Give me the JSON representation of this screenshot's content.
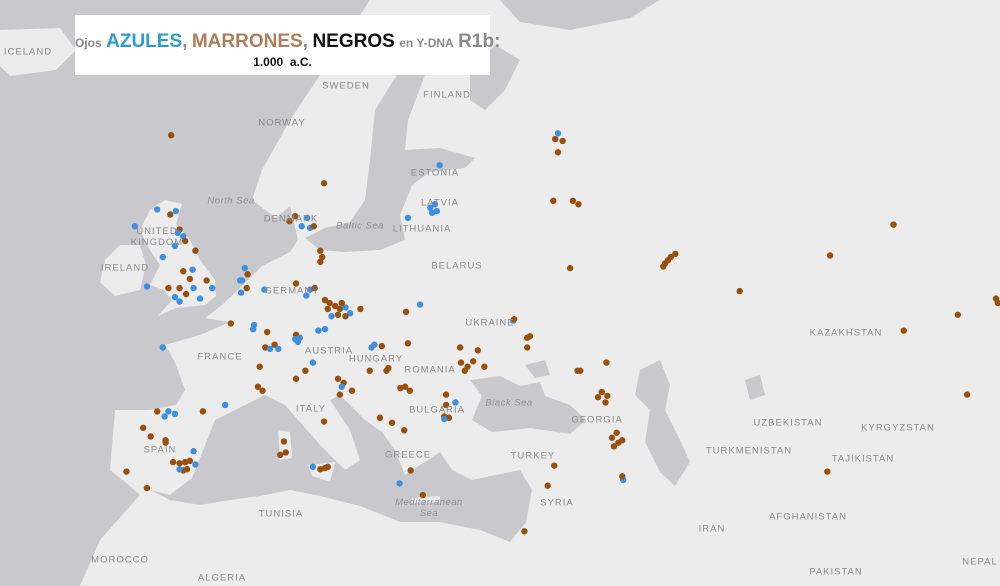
{
  "title": {
    "prefix": "Ojos",
    "blue_word": "AZULES",
    "sep1": ",",
    "brown_word": "MARRONES",
    "sep2": ",",
    "black_word": "NEGROS",
    "mid": "en Y-DNA",
    "haplogroup": "R1b",
    "colon": ":",
    "date": "1.000  a.C."
  },
  "colors": {
    "blue": "#3d8fe0",
    "brown": "#9a4f0c",
    "black": "#111111",
    "water": "#c9c9cd",
    "land": "#ececec"
  },
  "labels": {
    "iceland": "ICELAND",
    "sweden": "SWEDEN",
    "finland": "FINLAND",
    "norway": "NORWAY",
    "north_sea": "North Sea",
    "estonia": "ESTONIA",
    "denmark": "DENMARK",
    "baltic_sea": "Baltic Sea",
    "latvia": "LATVIA",
    "uk": "UNITED KINGDOM",
    "lithuania": "LITHUANIA",
    "ireland": "IRELAND",
    "belarus": "BELARUS",
    "germany": "GERMANY",
    "ukraine": "UKRAINE",
    "kazakhstan": "KAZAKHSTAN",
    "france": "FRANCE",
    "austria": "AUSTRIA",
    "hungary": "HUNGARY",
    "romania": "ROMANIA",
    "black_sea": "Black Sea",
    "bulgaria": "BULGARIA",
    "italy": "ITALY",
    "georgia": "GEORGIA",
    "uzbekistan": "UZBEKISTAN",
    "kyrgyzstan": "KYRGYZSTAN",
    "spain": "SPAIN",
    "turkmenistan": "TURKMENISTAN",
    "greece": "GREECE",
    "turkey": "TURKEY",
    "tajikistan": "TAJIKISTAN",
    "syria": "SYRIA",
    "tunisia": "TUNISIA",
    "mediterranean": "Mediterranean Sea",
    "iran": "IRAN",
    "afghanistan": "AFGHANISTAN",
    "morocco": "MOROCCO",
    "algeria": "ALGERIA",
    "pakistan": "PAKISTAN",
    "nepal": "NEPAL"
  },
  "samples": [
    {
      "lon": -2.8,
      "lat": 61.0,
      "eye": "brown"
    },
    {
      "lon": -4.3,
      "lat": 56.9,
      "eye": "blue"
    },
    {
      "lon": -2.3,
      "lat": 56.8,
      "eye": "blue"
    },
    {
      "lon": -2.9,
      "lat": 56.6,
      "eye": "brown"
    },
    {
      "lon": -6.7,
      "lat": 55.9,
      "eye": "blue"
    },
    {
      "lon": -1.9,
      "lat": 55.7,
      "eye": "brown"
    },
    {
      "lon": -2.1,
      "lat": 55.5,
      "eye": "blue"
    },
    {
      "lon": -1.5,
      "lat": 55.3,
      "eye": "blue"
    },
    {
      "lon": -2.4,
      "lat": 54.7,
      "eye": "blue"
    },
    {
      "lon": -1.3,
      "lat": 55.0,
      "eye": "brown"
    },
    {
      "lon": -0.2,
      "lat": 54.4,
      "eye": "brown"
    },
    {
      "lon": -3.7,
      "lat": 54.0,
      "eye": "blue"
    },
    {
      "lon": -1.5,
      "lat": 53.1,
      "eye": "brown"
    },
    {
      "lon": -0.5,
      "lat": 53.2,
      "eye": "blue"
    },
    {
      "lon": -0.8,
      "lat": 52.6,
      "eye": "brown"
    },
    {
      "lon": -1.9,
      "lat": 52.0,
      "eye": "brown"
    },
    {
      "lon": -1.2,
      "lat": 51.6,
      "eye": "brown"
    },
    {
      "lon": -0.4,
      "lat": 52.0,
      "eye": "blue"
    },
    {
      "lon": 0.3,
      "lat": 51.3,
      "eye": "blue"
    },
    {
      "lon": 1.6,
      "lat": 52.0,
      "eye": "blue"
    },
    {
      "lon": -3.1,
      "lat": 52.0,
      "eye": "brown"
    },
    {
      "lon": -1.9,
      "lat": 51.1,
      "eye": "blue"
    },
    {
      "lon": -2.4,
      "lat": 51.4,
      "eye": "blue"
    },
    {
      "lon": 1.0,
      "lat": 52.5,
      "eye": "brown"
    },
    {
      "lon": -5.4,
      "lat": 52.1,
      "eye": "blue"
    },
    {
      "lon": 5.1,
      "lat": 53.3,
      "eye": "blue"
    },
    {
      "lon": 5.4,
      "lat": 52.9,
      "eye": "brown"
    },
    {
      "lon": 4.8,
      "lat": 52.5,
      "eye": "blue"
    },
    {
      "lon": 5.3,
      "lat": 52.0,
      "eye": "brown"
    },
    {
      "lon": 4.7,
      "lat": 51.7,
      "eye": "blue"
    },
    {
      "lon": 4.6,
      "lat": 52.5,
      "eye": "blue"
    },
    {
      "lon": 7.2,
      "lat": 51.9,
      "eye": "blue"
    },
    {
      "lon": 10.6,
      "lat": 52.3,
      "eye": "brown"
    },
    {
      "lon": 12.1,
      "lat": 51.9,
      "eye": "blue"
    },
    {
      "lon": 11.7,
      "lat": 51.5,
      "eye": "blue"
    },
    {
      "lon": 12.6,
      "lat": 52.0,
      "eye": "brown"
    },
    {
      "lon": 10.5,
      "lat": 56.5,
      "eye": "brown"
    },
    {
      "lon": 9.9,
      "lat": 56.2,
      "eye": "brown"
    },
    {
      "lon": 11.8,
      "lat": 56.4,
      "eye": "blue"
    },
    {
      "lon": 11.2,
      "lat": 55.9,
      "eye": "blue"
    },
    {
      "lon": 12.1,
      "lat": 55.8,
      "eye": "blue"
    },
    {
      "lon": 12.5,
      "lat": 55.9,
      "eye": "brown"
    },
    {
      "lon": 13.2,
      "lat": 54.4,
      "eye": "brown"
    },
    {
      "lon": 13.4,
      "lat": 54.0,
      "eye": "brown"
    },
    {
      "lon": 13.2,
      "lat": 53.7,
      "eye": "brown"
    },
    {
      "lon": 13.6,
      "lat": 58.4,
      "eye": "brown"
    },
    {
      "lon": 13.7,
      "lat": 51.2,
      "eye": "brown"
    },
    {
      "lon": 14.2,
      "lat": 51.0,
      "eye": "brown"
    },
    {
      "lon": 14.8,
      "lat": 50.8,
      "eye": "brown"
    },
    {
      "lon": 15.3,
      "lat": 50.6,
      "eye": "brown"
    },
    {
      "lon": 15.9,
      "lat": 50.7,
      "eye": "blue"
    },
    {
      "lon": 16.4,
      "lat": 50.3,
      "eye": "blue"
    },
    {
      "lon": 14.4,
      "lat": 50.1,
      "eye": "blue"
    },
    {
      "lon": 15.1,
      "lat": 50.2,
      "eye": "brown"
    },
    {
      "lon": 14.0,
      "lat": 50.6,
      "eye": "brown"
    },
    {
      "lon": 15.9,
      "lat": 50.1,
      "eye": "brown"
    },
    {
      "lon": 17.5,
      "lat": 50.6,
      "eye": "brown"
    },
    {
      "lon": 15.5,
      "lat": 51.0,
      "eye": "brown"
    },
    {
      "lon": 22.4,
      "lat": 50.4,
      "eye": "brown"
    },
    {
      "lon": 23.9,
      "lat": 50.9,
      "eye": "blue"
    },
    {
      "lon": 3.6,
      "lat": 49.6,
      "eye": "brown"
    },
    {
      "lon": 6.1,
      "lat": 49.5,
      "eye": "blue"
    },
    {
      "lon": 6.0,
      "lat": 49.2,
      "eye": "blue"
    },
    {
      "lon": 7.5,
      "lat": 49.0,
      "eye": "brown"
    },
    {
      "lon": 7.3,
      "lat": 47.9,
      "eye": "brown"
    },
    {
      "lon": 8.3,
      "lat": 48.1,
      "eye": "brown"
    },
    {
      "lon": 8.7,
      "lat": 47.8,
      "eye": "blue"
    },
    {
      "lon": 7.8,
      "lat": 47.8,
      "eye": "blue"
    },
    {
      "lon": 10.6,
      "lat": 48.8,
      "eye": "brown"
    },
    {
      "lon": 10.8,
      "lat": 48.3,
      "eye": "blue"
    },
    {
      "lon": 11.0,
      "lat": 48.6,
      "eye": "blue"
    },
    {
      "lon": 10.5,
      "lat": 48.5,
      "eye": "blue"
    },
    {
      "lon": 13.0,
      "lat": 49.1,
      "eye": "blue"
    },
    {
      "lon": 13.7,
      "lat": 49.2,
      "eye": "blue"
    },
    {
      "lon": -3.7,
      "lat": 47.9,
      "eye": "blue"
    },
    {
      "lon": 6.7,
      "lat": 46.5,
      "eye": "brown"
    },
    {
      "lon": 6.5,
      "lat": 45.0,
      "eye": "brown"
    },
    {
      "lon": 7.0,
      "lat": 44.7,
      "eye": "brown"
    },
    {
      "lon": 3.0,
      "lat": 43.6,
      "eye": "blue"
    },
    {
      "lon": 10.6,
      "lat": 45.6,
      "eye": "brown"
    },
    {
      "lon": 12.4,
      "lat": 46.8,
      "eye": "blue"
    },
    {
      "lon": 11.6,
      "lat": 46.2,
      "eye": "brown"
    },
    {
      "lon": 18.7,
      "lat": 47.9,
      "eye": "blue"
    },
    {
      "lon": 19.0,
      "lat": 48.1,
      "eye": "blue"
    },
    {
      "lon": 19.8,
      "lat": 48.0,
      "eye": "brown"
    },
    {
      "lon": 22.6,
      "lat": 48.2,
      "eye": "brown"
    },
    {
      "lon": 18.5,
      "lat": 46.2,
      "eye": "brown"
    },
    {
      "lon": 20.3,
      "lat": 46.2,
      "eye": "brown"
    },
    {
      "lon": 20.5,
      "lat": 46.4,
      "eye": "brown"
    },
    {
      "lon": 15.1,
      "lat": 45.6,
      "eye": "brown"
    },
    {
      "lon": 15.7,
      "lat": 45.3,
      "eye": "brown"
    },
    {
      "lon": 15.5,
      "lat": 45.0,
      "eye": "blue"
    },
    {
      "lon": 16.6,
      "lat": 44.7,
      "eye": "brown"
    },
    {
      "lon": 15.3,
      "lat": 44.4,
      "eye": "brown"
    },
    {
      "lon": 22.3,
      "lat": 45.0,
      "eye": "brown"
    },
    {
      "lon": 22.8,
      "lat": 44.7,
      "eye": "brown"
    },
    {
      "lon": 21.8,
      "lat": 44.9,
      "eye": "brown"
    },
    {
      "lon": 26.7,
      "lat": 44.4,
      "eye": "brown"
    },
    {
      "lon": 27.7,
      "lat": 43.8,
      "eye": "blue"
    },
    {
      "lon": 26.7,
      "lat": 43.6,
      "eye": "brown"
    },
    {
      "lon": 26.5,
      "lat": 42.7,
      "eye": "brown"
    },
    {
      "lon": 27.0,
      "lat": 42.6,
      "eye": "brown"
    },
    {
      "lon": 26.5,
      "lat": 42.5,
      "eye": "blue"
    },
    {
      "lon": 19.6,
      "lat": 42.6,
      "eye": "brown"
    },
    {
      "lon": 20.9,
      "lat": 42.2,
      "eye": "brown"
    },
    {
      "lon": 22.2,
      "lat": 41.6,
      "eye": "brown"
    },
    {
      "lon": 22.9,
      "lat": 38.3,
      "eye": "brown"
    },
    {
      "lon": 21.7,
      "lat": 37.2,
      "eye": "blue"
    },
    {
      "lon": 24.2,
      "lat": 36.2,
      "eye": "brown"
    },
    {
      "lon": 28.7,
      "lat": 46.2,
      "eye": "brown"
    },
    {
      "lon": 29.0,
      "lat": 46.5,
      "eye": "brown"
    },
    {
      "lon": 28.3,
      "lat": 46.8,
      "eye": "brown"
    },
    {
      "lon": 28.2,
      "lat": 47.9,
      "eye": "brown"
    },
    {
      "lon": 13.6,
      "lat": 42.3,
      "eye": "brown"
    },
    {
      "lon": 9.3,
      "lat": 40.7,
      "eye": "brown"
    },
    {
      "lon": 9.5,
      "lat": 39.8,
      "eye": "brown"
    },
    {
      "lon": 8.9,
      "lat": 39.6,
      "eye": "brown"
    },
    {
      "lon": 12.4,
      "lat": 38.6,
      "eye": "blue"
    },
    {
      "lon": 13.7,
      "lat": 38.5,
      "eye": "brown"
    },
    {
      "lon": 14.0,
      "lat": 38.6,
      "eye": "brown"
    },
    {
      "lon": 13.2,
      "lat": 38.4,
      "eye": "brown"
    },
    {
      "lon": -4.3,
      "lat": 43.1,
      "eye": "brown"
    },
    {
      "lon": -3.1,
      "lat": 43.1,
      "eye": "blue"
    },
    {
      "lon": -2.4,
      "lat": 42.9,
      "eye": "blue"
    },
    {
      "lon": -3.5,
      "lat": 42.7,
      "eye": "blue"
    },
    {
      "lon": 0.6,
      "lat": 43.1,
      "eye": "brown"
    },
    {
      "lon": -5.8,
      "lat": 41.8,
      "eye": "brown"
    },
    {
      "lon": -5.0,
      "lat": 41.1,
      "eye": "brown"
    },
    {
      "lon": -3.4,
      "lat": 40.8,
      "eye": "brown"
    },
    {
      "lon": -3.4,
      "lat": 40.6,
      "eye": "brown"
    },
    {
      "lon": -0.4,
      "lat": 39.9,
      "eye": "blue"
    },
    {
      "lon": -0.2,
      "lat": 38.8,
      "eye": "blue"
    },
    {
      "lon": -1.9,
      "lat": 38.9,
      "eye": "brown"
    },
    {
      "lon": -1.3,
      "lat": 39.0,
      "eye": "brown"
    },
    {
      "lon": -1.1,
      "lat": 38.4,
      "eye": "brown"
    },
    {
      "lon": -0.8,
      "lat": 39.1,
      "eye": "brown"
    },
    {
      "lon": -1.5,
      "lat": 38.3,
      "eye": "brown"
    },
    {
      "lon": -2.6,
      "lat": 39.0,
      "eye": "brown"
    },
    {
      "lon": -1.9,
      "lat": 38.4,
      "eye": "blue"
    },
    {
      "lon": -7.6,
      "lat": 38.2,
      "eye": "brown"
    },
    {
      "lon": -5.4,
      "lat": 36.8,
      "eye": "brown"
    },
    {
      "lon": 26.0,
      "lat": 59.4,
      "eye": "blue"
    },
    {
      "lon": 25.0,
      "lat": 57.0,
      "eye": "blue"
    },
    {
      "lon": 25.5,
      "lat": 57.2,
      "eye": "blue"
    },
    {
      "lon": 25.2,
      "lat": 56.7,
      "eye": "blue"
    },
    {
      "lon": 25.7,
      "lat": 56.8,
      "eye": "blue"
    },
    {
      "lon": 22.6,
      "lat": 56.4,
      "eye": "blue"
    },
    {
      "lon": 38.7,
      "lat": 61.1,
      "eye": "blue"
    },
    {
      "lon": 38.4,
      "lat": 60.8,
      "eye": "brown"
    },
    {
      "lon": 39.2,
      "lat": 60.7,
      "eye": "brown"
    },
    {
      "lon": 38.7,
      "lat": 60.1,
      "eye": "brown"
    },
    {
      "lon": 38.2,
      "lat": 57.4,
      "eye": "brown"
    },
    {
      "lon": 40.3,
      "lat": 57.4,
      "eye": "brown"
    },
    {
      "lon": 40.9,
      "lat": 57.2,
      "eye": "brown"
    },
    {
      "lon": 40.0,
      "lat": 53.3,
      "eye": "brown"
    },
    {
      "lon": 50.2,
      "lat": 53.6,
      "eye": "brown"
    },
    {
      "lon": 50.8,
      "lat": 54.0,
      "eye": "brown"
    },
    {
      "lon": 51.3,
      "lat": 54.2,
      "eye": "brown"
    },
    {
      "lon": 50.5,
      "lat": 53.8,
      "eye": "brown"
    },
    {
      "lon": 50.0,
      "lat": 53.4,
      "eye": "brown"
    },
    {
      "lon": 58.2,
      "lat": 51.8,
      "eye": "brown"
    },
    {
      "lon": 67.9,
      "lat": 54.1,
      "eye": "brown"
    },
    {
      "lon": 74.7,
      "lat": 56.0,
      "eye": "brown"
    },
    {
      "lon": 75.8,
      "lat": 49.1,
      "eye": "brown"
    },
    {
      "lon": 81.6,
      "lat": 50.2,
      "eye": "brown"
    },
    {
      "lon": 85.7,
      "lat": 51.3,
      "eye": "brown"
    },
    {
      "lon": 85.9,
      "lat": 51.0,
      "eye": "brown"
    },
    {
      "lon": 82.6,
      "lat": 44.4,
      "eye": "brown"
    },
    {
      "lon": 67.6,
      "lat": 38.2,
      "eye": "brown"
    },
    {
      "lon": 33.9,
      "lat": 49.8,
      "eye": "blue"
    },
    {
      "lon": 34.0,
      "lat": 49.9,
      "eye": "brown"
    },
    {
      "lon": 35.4,
      "lat": 48.6,
      "eye": "brown"
    },
    {
      "lon": 35.7,
      "lat": 48.7,
      "eye": "brown"
    },
    {
      "lon": 35.4,
      "lat": 47.9,
      "eye": "brown"
    },
    {
      "lon": 30.1,
      "lat": 47.7,
      "eye": "brown"
    },
    {
      "lon": 29.6,
      "lat": 46.9,
      "eye": "brown"
    },
    {
      "lon": 30.8,
      "lat": 46.5,
      "eye": "brown"
    },
    {
      "lon": 43.9,
      "lat": 46.8,
      "eye": "brown"
    },
    {
      "lon": 41.1,
      "lat": 46.2,
      "eye": "brown"
    },
    {
      "lon": 40.8,
      "lat": 46.2,
      "eye": "brown"
    },
    {
      "lon": 43.4,
      "lat": 44.6,
      "eye": "brown"
    },
    {
      "lon": 43.0,
      "lat": 44.2,
      "eye": "brown"
    },
    {
      "lon": 44.0,
      "lat": 44.3,
      "eye": "brown"
    },
    {
      "lon": 43.8,
      "lat": 43.8,
      "eye": "brown"
    },
    {
      "lon": 45.0,
      "lat": 41.4,
      "eye": "brown"
    },
    {
      "lon": 44.5,
      "lat": 41.0,
      "eye": "brown"
    },
    {
      "lon": 45.2,
      "lat": 40.6,
      "eye": "brown"
    },
    {
      "lon": 44.7,
      "lat": 40.3,
      "eye": "brown"
    },
    {
      "lon": 45.6,
      "lat": 40.8,
      "eye": "brown"
    },
    {
      "lon": 45.7,
      "lat": 37.5,
      "eye": "blue"
    },
    {
      "lon": 45.6,
      "lat": 37.8,
      "eye": "brown"
    },
    {
      "lon": 38.3,
      "lat": 38.7,
      "eye": "brown"
    },
    {
      "lon": 37.6,
      "lat": 37.0,
      "eye": "brown"
    },
    {
      "lon": 35.1,
      "lat": 33.0,
      "eye": "brown"
    }
  ]
}
